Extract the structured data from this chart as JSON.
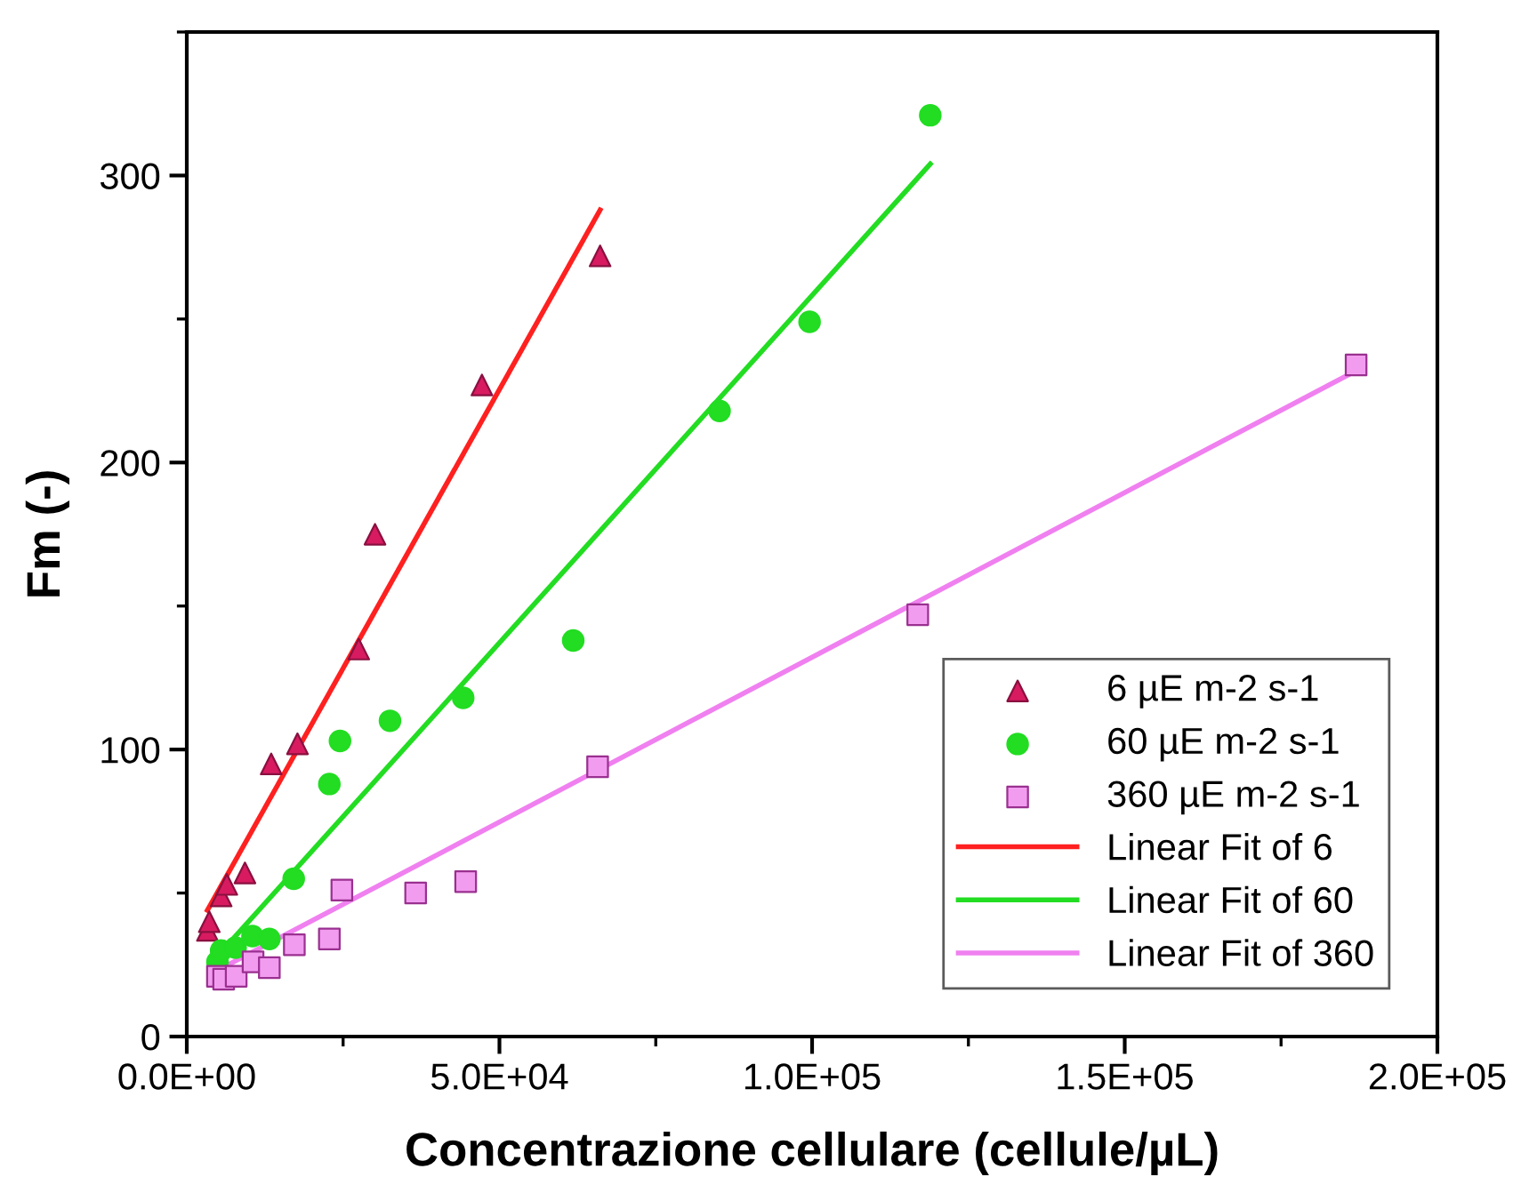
{
  "chart_data": {
    "type": "scatter",
    "xlabel": "Concentrazione cellulare (cellule/µL)",
    "ylabel": "Fm (-)",
    "xlim": [
      0,
      200000
    ],
    "xticks": [
      {
        "value": 0,
        "label": "0.0E+00"
      },
      {
        "value": 50000,
        "label": "5.0E+04"
      },
      {
        "value": 100000,
        "label": "1.0E+05"
      },
      {
        "value": 150000,
        "label": "1.5E+05"
      },
      {
        "value": 200000,
        "label": "2.0E+05"
      }
    ],
    "ylim": [
      0,
      350
    ],
    "yticks": [
      0,
      100,
      200,
      300
    ],
    "grid": false,
    "legend": "bottom right",
    "series": [
      {
        "name": "6 µE m-2 s-1",
        "marker": "triangle",
        "color": "#d81b60",
        "x": [
          3300,
          3600,
          5500,
          6400,
          9300,
          13500,
          17700,
          27500,
          30100,
          47200,
          66100
        ],
        "values": [
          37,
          40,
          49,
          53,
          57,
          95,
          102,
          135,
          175,
          227,
          272
        ]
      },
      {
        "name": "60 µE m-2 s-1",
        "marker": "circle",
        "color": "#22dd22",
        "x": [
          4900,
          5500,
          7800,
          10500,
          13200,
          17100,
          22800,
          24500,
          32500,
          44200,
          61800,
          85200,
          99600,
          118900
        ],
        "values": [
          26,
          30,
          31,
          35,
          34,
          55,
          88,
          103,
          110,
          118,
          138,
          218,
          249,
          321
        ]
      },
      {
        "name": "360 µE m-2 s-1",
        "marker": "square",
        "color": "#f29cf0",
        "x": [
          4900,
          5900,
          7900,
          10600,
          13200,
          17200,
          22800,
          24800,
          36600,
          44600,
          65700,
          116900,
          187000
        ],
        "values": [
          21,
          20,
          21,
          26,
          24,
          32,
          34,
          51,
          50,
          54,
          94,
          147,
          234
        ]
      },
      {
        "name": "Linear Fit of 6",
        "type": "line",
        "marker": "none",
        "color": "#ff2020",
        "x": [
          3300,
          66100
        ],
        "values": [
          44,
          288
        ]
      },
      {
        "name": "Linear Fit of 60",
        "type": "line",
        "marker": "none",
        "color": "#22dd22",
        "x": [
          4900,
          118900
        ],
        "values": [
          28,
          304
        ]
      },
      {
        "name": "Linear Fit of 360",
        "type": "line",
        "marker": "none",
        "color": "#f080f0",
        "x": [
          4900,
          187000
        ],
        "values": [
          23,
          232
        ]
      }
    ]
  }
}
